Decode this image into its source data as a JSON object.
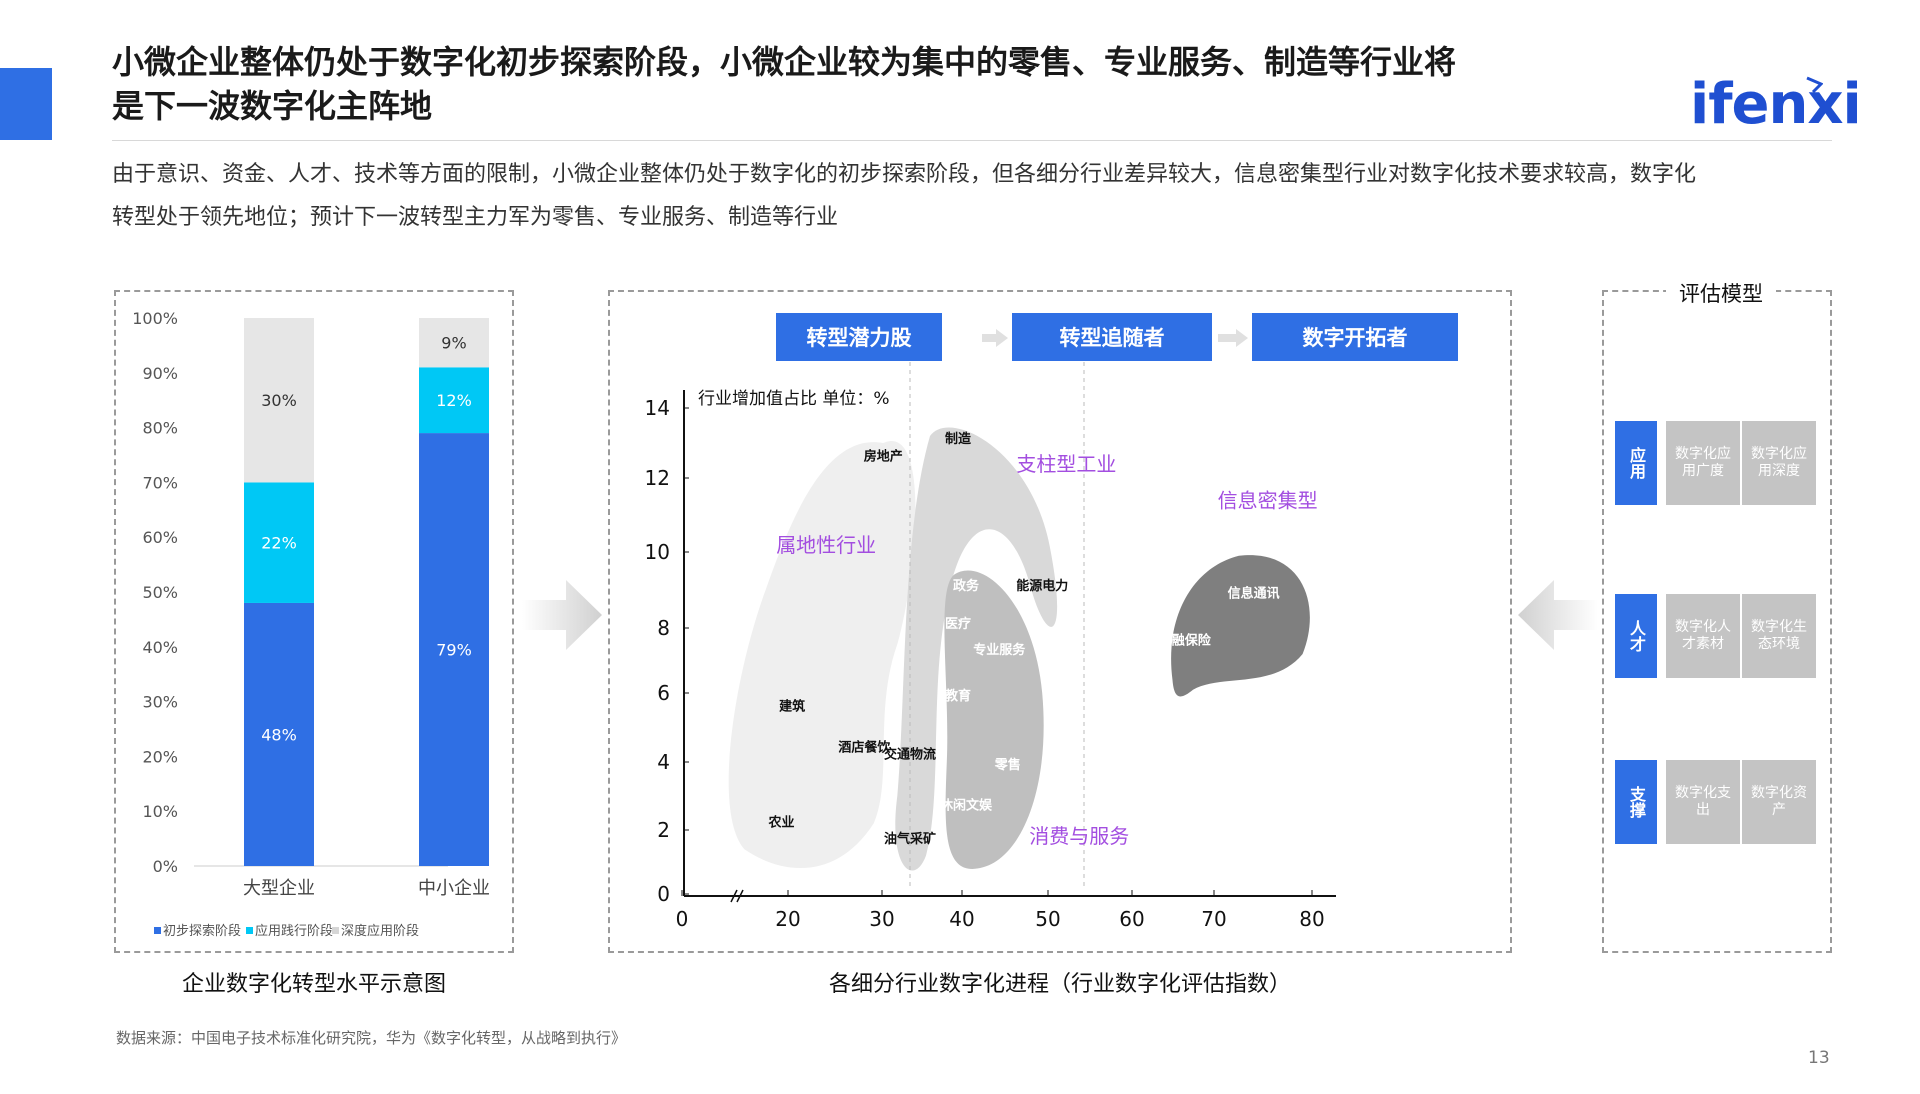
{
  "header": {
    "title_line1": "小微企业整体仍处于数字化初步探索阶段，小微企业较为集中的零售、专业服务、制造等行业将",
    "title_line2": "是下一波数字化主阵地",
    "logo": "ifenxi",
    "subtitle_line1": "由于意识、资金、人才、技术等方面的限制，小微企业整体仍处于数字化的初步探索阶段，但各细分行业差异较大，信息密集型行业对数字化技术要求较高，数字化",
    "subtitle_line2": "转型处于领先地位；预计下一波转型主力军为零售、专业服务、制造等行业"
  },
  "chart_data": [
    {
      "type": "bar",
      "stacked": true,
      "title": "企业数字化转型水平示意图",
      "categories": [
        "大型企业",
        "中小企业"
      ],
      "series": [
        {
          "name": "初步探索阶段",
          "values": [
            48,
            79
          ],
          "color": "#2f6fe4",
          "labels": [
            "48%",
            "79%"
          ]
        },
        {
          "name": "应用践行阶段",
          "values": [
            22,
            12
          ],
          "color": "#00c8f5",
          "labels": [
            "22%",
            "12%"
          ]
        },
        {
          "name": "深度应用阶段",
          "values": [
            30,
            9
          ],
          "color": "#e6e6e6",
          "labels": [
            "30%",
            "9%"
          ]
        }
      ],
      "ylim": [
        0,
        100
      ],
      "yticks": [
        "0%",
        "10%",
        "20%",
        "30%",
        "40%",
        "50%",
        "60%",
        "70%",
        "80%",
        "90%",
        "100%"
      ],
      "legend_position": "bottom"
    },
    {
      "type": "scatter",
      "title": "各细分行业数字化进程（行业数字化评估指数）",
      "ylabel": "行业增加值占比 单位：%",
      "xticks": [
        "0",
        "20",
        "30",
        "40",
        "50",
        "60",
        "70",
        "80"
      ],
      "yticks": [
        "0",
        "2",
        "4",
        "6",
        "8",
        "10",
        "12",
        "14"
      ],
      "stages": [
        "转型潜力股",
        "转型追随者",
        "数字开拓者"
      ],
      "groups": [
        {
          "name": "属地性行业",
          "color": "#efefef"
        },
        {
          "name": "支柱型工业",
          "color": "#d9d9d9"
        },
        {
          "name": "消费与服务",
          "color": "#bfbfbf"
        },
        {
          "name": "信息密集型",
          "color": "#7f7f7f"
        }
      ],
      "points": [
        {
          "label": "房地产",
          "x": 28,
          "y": 12.5,
          "group": "属地性行业"
        },
        {
          "label": "建筑",
          "x": 17,
          "y": 5.5,
          "group": "属地性行业"
        },
        {
          "label": "酒店餐饮",
          "x": 26,
          "y": 4.3,
          "group": "属地性行业"
        },
        {
          "label": "农业",
          "x": 15,
          "y": 2.1,
          "group": "属地性行业"
        },
        {
          "label": "交通物流",
          "x": 31,
          "y": 4.1,
          "group": "属地性行业"
        },
        {
          "label": "油气采矿",
          "x": 31,
          "y": 1.6,
          "group": "属地性行业"
        },
        {
          "label": "制造",
          "x": 37,
          "y": 13.0,
          "group": "支柱型工业"
        },
        {
          "label": "能源电力",
          "x": 47,
          "y": 9.0,
          "group": "支柱型工业"
        },
        {
          "label": "政务",
          "x": 38,
          "y": 9.0,
          "group": "消费与服务"
        },
        {
          "label": "医疗",
          "x": 37,
          "y": 8.0,
          "group": "消费与服务"
        },
        {
          "label": "专业服务",
          "x": 42,
          "y": 7.2,
          "group": "消费与服务"
        },
        {
          "label": "教育",
          "x": 37,
          "y": 5.8,
          "group": "消费与服务"
        },
        {
          "label": "零售",
          "x": 43,
          "y": 3.8,
          "group": "消费与服务"
        },
        {
          "label": "休闲文娱",
          "x": 38,
          "y": 2.6,
          "group": "消费与服务"
        },
        {
          "label": "信息通讯",
          "x": 72,
          "y": 8.8,
          "group": "信息密集型"
        },
        {
          "label": "金融保险",
          "x": 64,
          "y": 7.5,
          "group": "信息密集型"
        }
      ]
    }
  ],
  "model": {
    "title": "评估模型",
    "rows": [
      {
        "category": "应用",
        "cells": [
          "数字化应用广度",
          "数字化应用深度"
        ]
      },
      {
        "category": "人才",
        "cells": [
          "数字化人才素材",
          "数字化生态环境"
        ]
      },
      {
        "category": "支撑",
        "cells": [
          "数字化支出",
          "数字化资产"
        ]
      }
    ]
  },
  "footer": {
    "source": "数据来源：中国电子技术标准化研究院，华为《数字化转型，从战略到执行》",
    "page": "13"
  }
}
